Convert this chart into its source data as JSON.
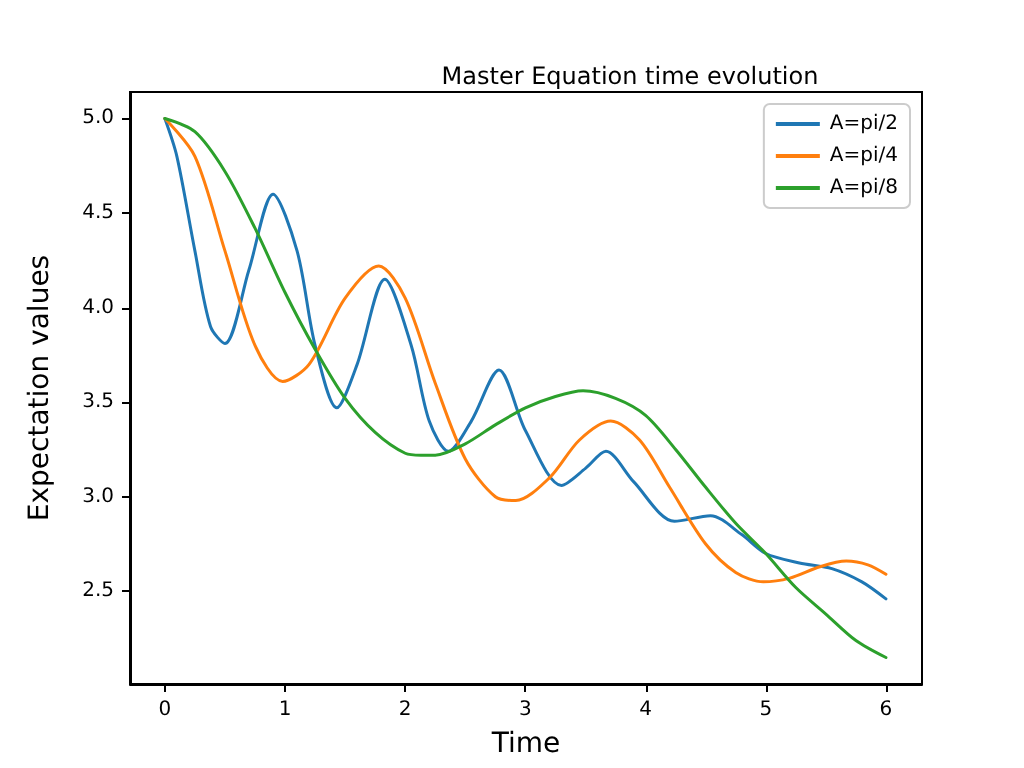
{
  "chart_data": {
    "type": "line",
    "title": "Master Equation time evolution",
    "xlabel": "Time",
    "ylabel": "Expectation values",
    "series": [
      {
        "name": "A=pi/2",
        "color": "#1f77b4",
        "x": [
          0,
          0.1,
          0.25,
          0.38,
          0.5,
          0.7,
          0.9,
          1.1,
          1.25,
          1.43,
          1.6,
          1.83,
          2.05,
          2.2,
          2.36,
          2.55,
          2.78,
          3.0,
          3.3,
          3.5,
          3.67,
          3.9,
          4.24,
          4.54,
          4.8,
          5.0,
          5.28,
          5.55,
          5.8,
          6.0
        ],
        "values": [
          5.0,
          4.8,
          4.3,
          3.9,
          3.81,
          4.2,
          4.6,
          4.3,
          3.8,
          3.47,
          3.7,
          4.15,
          3.8,
          3.4,
          3.24,
          3.4,
          3.67,
          3.35,
          3.06,
          3.15,
          3.24,
          3.08,
          2.87,
          2.9,
          2.8,
          2.7,
          2.65,
          2.62,
          2.55,
          2.46
        ]
      },
      {
        "name": "A=pi/4",
        "color": "#ff7f0e",
        "x": [
          0,
          0.25,
          0.5,
          0.75,
          0.98,
          1.2,
          1.5,
          1.78,
          2.0,
          2.25,
          2.5,
          2.75,
          2.92,
          3.2,
          3.45,
          3.71,
          3.95,
          4.2,
          4.5,
          4.75,
          4.98,
          5.2,
          5.45,
          5.67,
          5.85,
          6.0
        ],
        "values": [
          5.0,
          4.8,
          4.3,
          3.8,
          3.61,
          3.7,
          4.05,
          4.22,
          4.05,
          3.6,
          3.2,
          3.0,
          2.98,
          3.1,
          3.3,
          3.4,
          3.3,
          3.05,
          2.75,
          2.6,
          2.55,
          2.57,
          2.63,
          2.66,
          2.64,
          2.59
        ]
      },
      {
        "name": "A=pi/8",
        "color": "#2ca02c",
        "x": [
          0,
          0.25,
          0.5,
          0.75,
          1.0,
          1.25,
          1.5,
          1.75,
          2.0,
          2.13,
          2.25,
          2.5,
          2.75,
          3.0,
          3.25,
          3.48,
          3.75,
          4.0,
          4.25,
          4.5,
          4.75,
          5.0,
          5.25,
          5.5,
          5.75,
          6.0
        ],
        "values": [
          5.0,
          4.93,
          4.72,
          4.42,
          4.08,
          3.78,
          3.52,
          3.34,
          3.23,
          3.22,
          3.22,
          3.28,
          3.38,
          3.47,
          3.53,
          3.56,
          3.52,
          3.43,
          3.25,
          3.05,
          2.86,
          2.7,
          2.52,
          2.38,
          2.24,
          2.15
        ]
      }
    ],
    "xlim": [
      -0.29,
      6.3
    ],
    "xticks": [
      0,
      1,
      2,
      3,
      4,
      5,
      6
    ],
    "ylim": [
      2.01,
      5.14
    ],
    "yticks": [
      {
        "value": 2.5,
        "label": "2.5"
      },
      {
        "value": 3,
        "label": "3.0"
      },
      {
        "value": 3.5,
        "label": "3.5"
      },
      {
        "value": 4,
        "label": "4.0"
      },
      {
        "value": 4.5,
        "label": "4.5"
      },
      {
        "value": 5,
        "label": "5.0"
      }
    ],
    "legend": "top right",
    "grid": false,
    "marker": "none",
    "line_style": "solid"
  }
}
